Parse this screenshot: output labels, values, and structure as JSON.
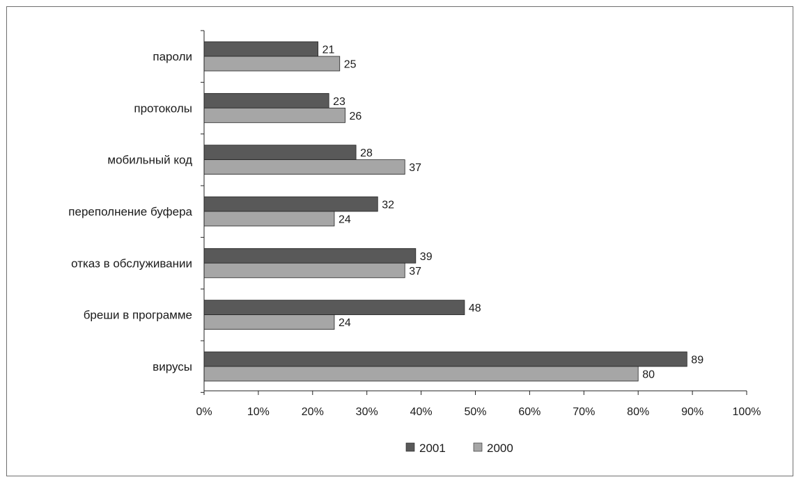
{
  "chart_data": {
    "type": "bar",
    "orientation": "horizontal",
    "categories": [
      "пароли",
      "протоколы",
      "мобильный код",
      "переполнение буфера",
      "отказ в обслуживании",
      "бреши в программе",
      "вирусы"
    ],
    "series": [
      {
        "name": "2001",
        "color": "#595959",
        "values": [
          21,
          23,
          28,
          32,
          39,
          48,
          89
        ]
      },
      {
        "name": "2000",
        "color": "#a6a6a6",
        "values": [
          25,
          26,
          37,
          24,
          37,
          24,
          80
        ]
      }
    ],
    "xlim": [
      0,
      100
    ],
    "x_ticks": [
      "0%",
      "10%",
      "20%",
      "30%",
      "40%",
      "50%",
      "60%",
      "70%",
      "80%",
      "90%",
      "100%"
    ],
    "grid": false,
    "legend_position": "bottom"
  }
}
